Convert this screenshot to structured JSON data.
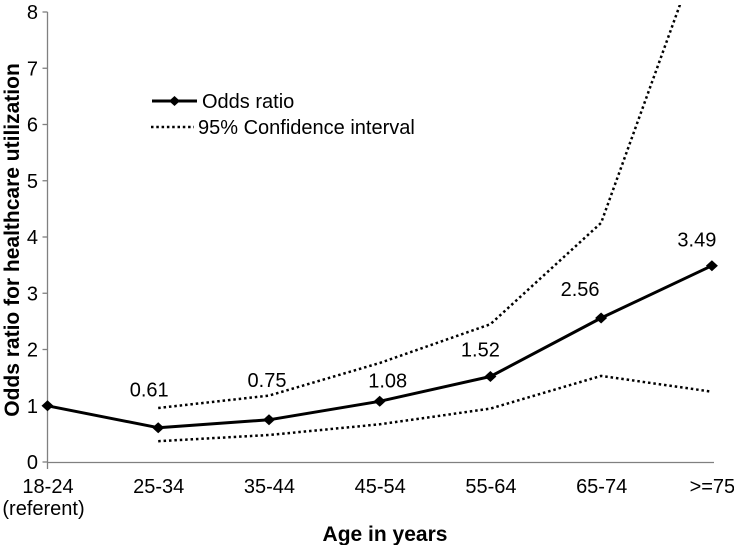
{
  "figure": {
    "background": "#ffffff",
    "axis_color": "#808080",
    "line_color": "#000000",
    "text_color": "#000000"
  },
  "chart_data": {
    "type": "line",
    "title": "",
    "xlabel": "Age in years",
    "ylabel": "Odds ratio for healthcare utilization",
    "categories": [
      "18-24",
      "25-34",
      "35-44",
      "45-54",
      "55-64",
      "65-74",
      ">=75"
    ],
    "category_note": {
      "index": 0,
      "text": "(referent)"
    },
    "ylim": [
      0,
      8
    ],
    "yticks": [
      "0",
      "1",
      "2",
      "3",
      "4",
      "5",
      "6",
      "7",
      "8"
    ],
    "grid": false,
    "legend": {
      "position": "inside-upper-left",
      "entries": [
        {
          "label": "Odds ratio",
          "line": "solid",
          "marker": "diamond"
        },
        {
          "label": "95% Confidence interval",
          "line": "dotted",
          "marker": "none"
        }
      ]
    },
    "series": [
      {
        "name": "Odds ratio",
        "line": "solid",
        "marker": "diamond",
        "color": "#000000",
        "values": [
          1.0,
          0.61,
          0.75,
          1.08,
          1.52,
          2.56,
          3.49
        ],
        "data_labels": [
          null,
          "0.61",
          "0.75",
          "1.08",
          "1.52",
          "2.56",
          "3.49"
        ]
      },
      {
        "name": "95% CI upper bound",
        "legend_label": "95% Confidence interval",
        "line": "dotted",
        "color": "#000000",
        "values": [
          null,
          0.96,
          1.18,
          1.76,
          2.45,
          4.25,
          9.7
        ],
        "clipped_at_ymax": true
      },
      {
        "name": "95% CI lower bound",
        "legend_label": "95% Confidence interval",
        "line": "dotted",
        "color": "#000000",
        "values": [
          null,
          0.37,
          0.48,
          0.67,
          0.95,
          1.53,
          1.25
        ]
      }
    ]
  }
}
